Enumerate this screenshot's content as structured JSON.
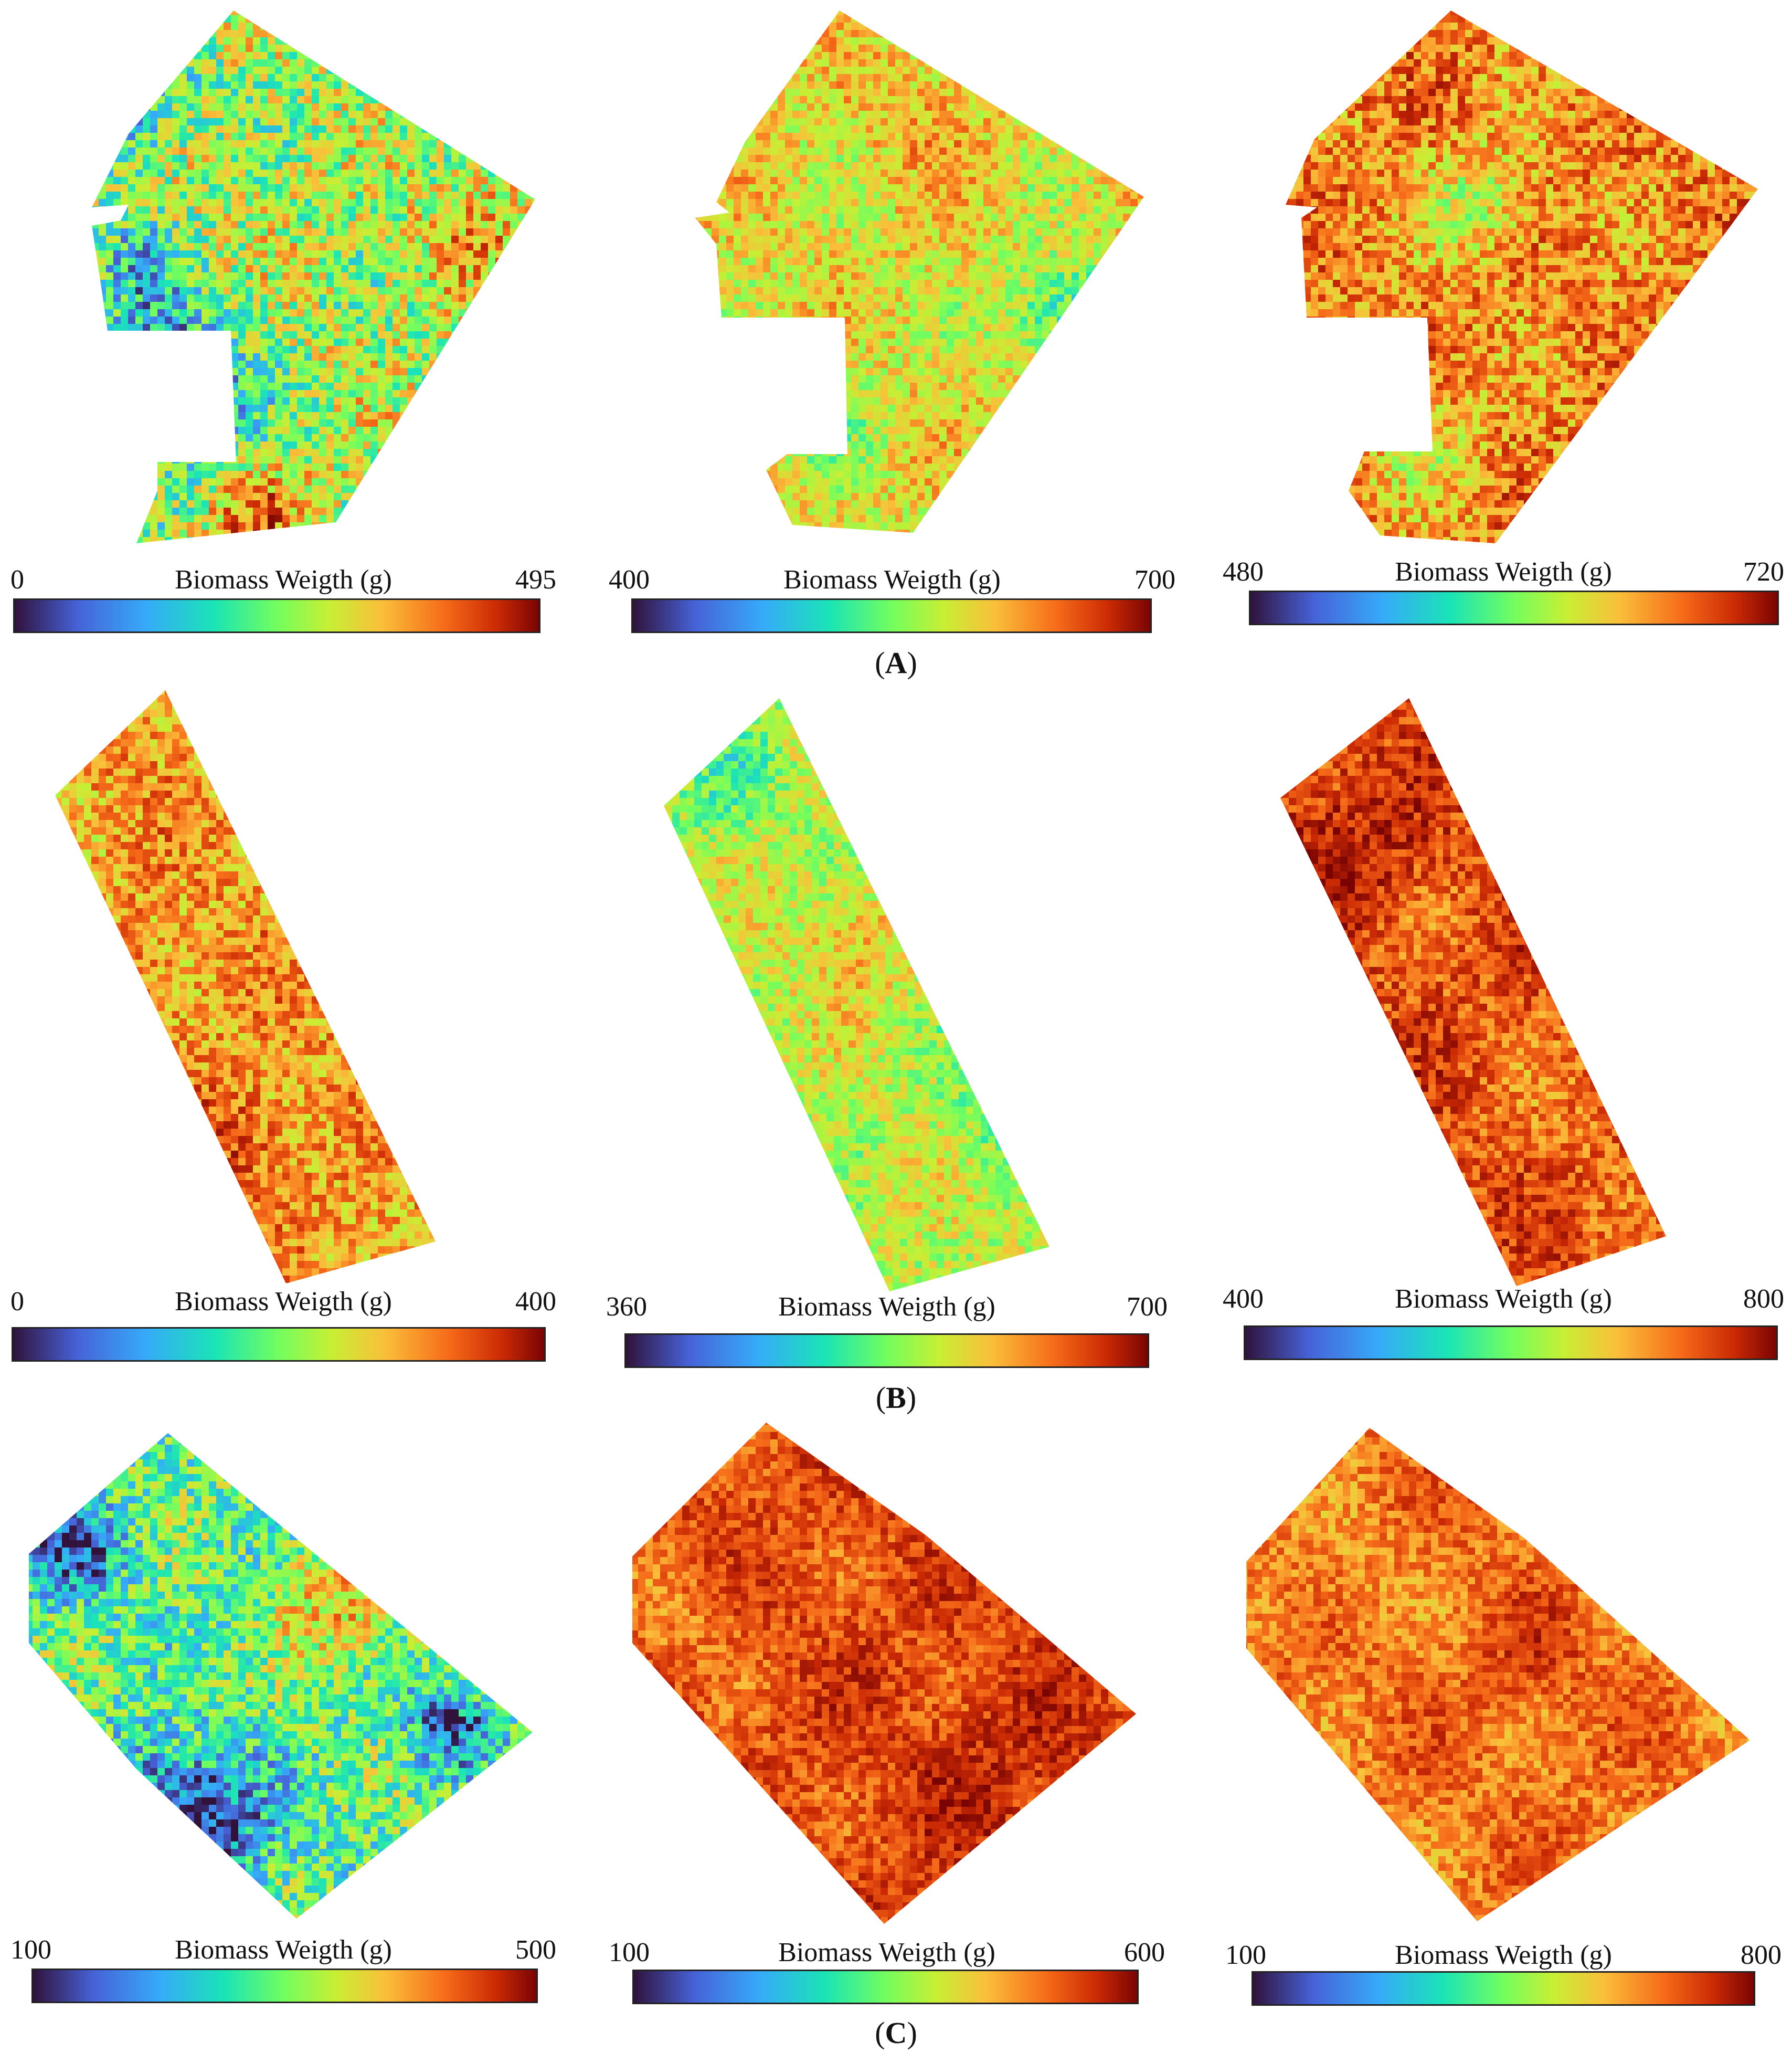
{
  "colormap": [
    "#30123b",
    "#4662d7",
    "#36aaf9",
    "#1ae4b6",
    "#72fe5e",
    "#c7ef34",
    "#fabf3a",
    "#f66b19",
    "#cb2a04",
    "#7a0403"
  ],
  "rows": [
    {
      "label_letter": "A",
      "panels": [
        {
          "title": "Biomass Weigth (g)",
          "min": "0",
          "max": "495",
          "dominant_tone": "mixed green with blue and orange patches"
        },
        {
          "title": "Biomass Weigth (g)",
          "min": "400",
          "max": "700",
          "dominant_tone": "yellow-orange with green patches"
        },
        {
          "title": "Biomass Weigth (g)",
          "min": "480",
          "max": "720",
          "dominant_tone": "orange-red with green patches"
        }
      ]
    },
    {
      "label_letter": "B",
      "panels": [
        {
          "title": "Biomass Weigth (g)",
          "min": "0",
          "max": "400",
          "dominant_tone": "orange-yellow with green"
        },
        {
          "title": "Biomass Weigth (g)",
          "min": "360",
          "max": "700",
          "dominant_tone": "green-yellow with orange"
        },
        {
          "title": "Biomass Weigth (g)",
          "min": "400",
          "max": "800",
          "dominant_tone": "red-orange"
        }
      ]
    },
    {
      "label_letter": "C",
      "panels": [
        {
          "title": "Biomass Weigth (g)",
          "min": "100",
          "max": "500",
          "dominant_tone": "green-blue with dark blue patches"
        },
        {
          "title": "Biomass Weigth (g)",
          "min": "100",
          "max": "600",
          "dominant_tone": "red-orange"
        },
        {
          "title": "Biomass Weigth (g)",
          "min": "100",
          "max": "800",
          "dominant_tone": "orange"
        }
      ]
    }
  ]
}
